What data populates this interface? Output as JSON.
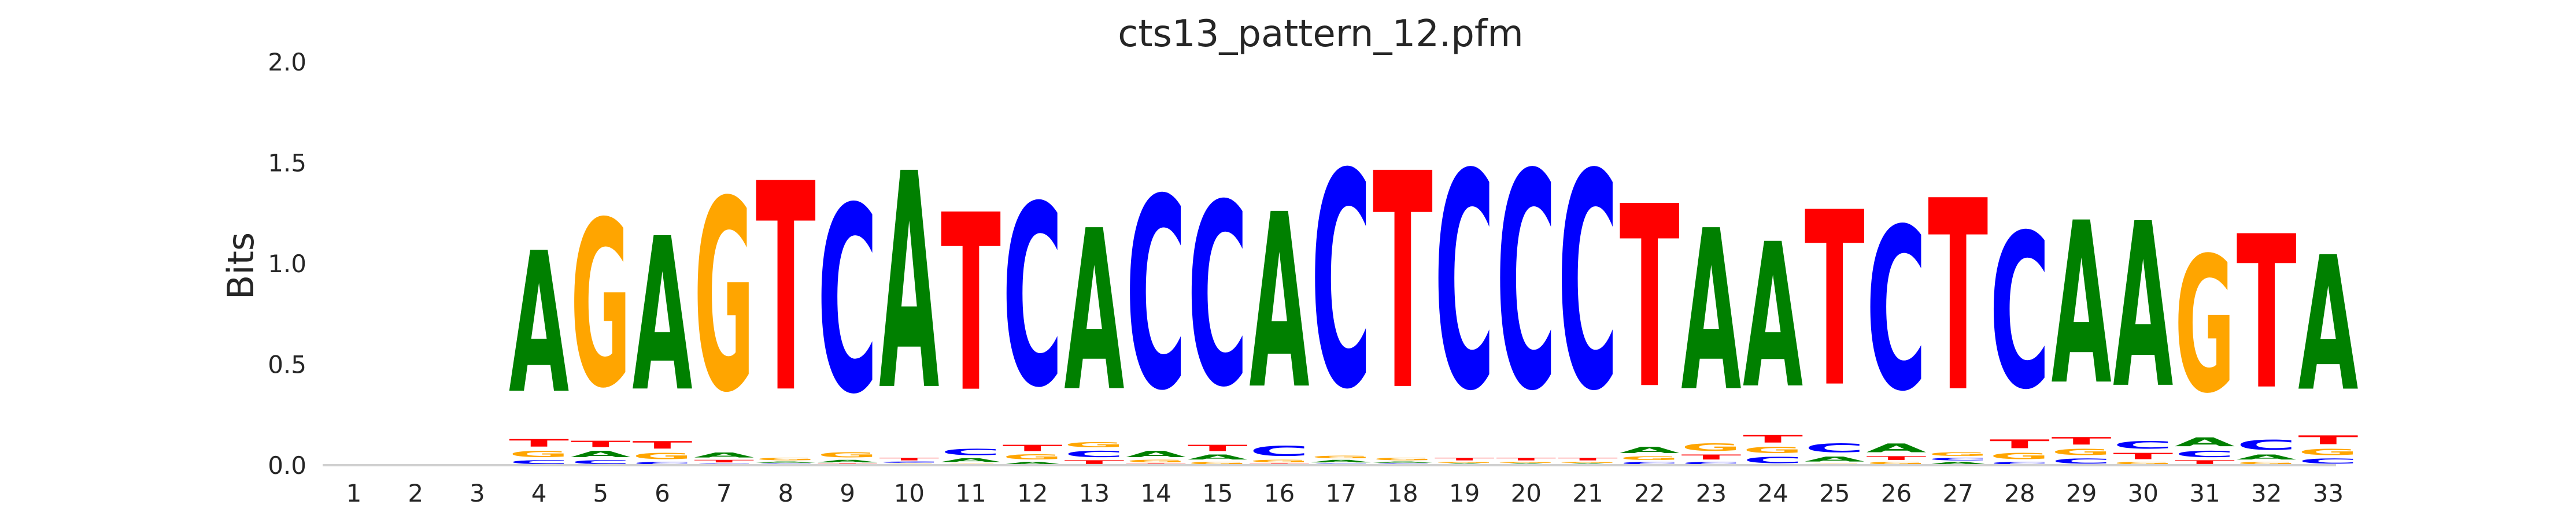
{
  "chart_data": {
    "type": "sequence-logo",
    "title": "cts13_pattern_12.pfm",
    "xlabel": "",
    "ylabel": "Bits",
    "ylim": [
      0,
      2
    ],
    "yticks": [
      "0.0",
      "0.5",
      "1.0",
      "1.5",
      "2.0"
    ],
    "ytick_values": [
      0,
      0.5,
      1.0,
      1.5,
      2.0
    ],
    "grid": false,
    "colors": {
      "A": "#008000",
      "C": "#0000ff",
      "G": "#ffa500",
      "T": "#ff0000"
    },
    "positions": [
      {
        "label": "1",
        "stack": []
      },
      {
        "label": "2",
        "stack": []
      },
      {
        "label": "3",
        "stack": []
      },
      {
        "label": "4",
        "stack": [
          [
            "C",
            0.03
          ],
          [
            "G",
            0.05
          ],
          [
            "T",
            0.06
          ],
          [
            "A",
            1.12
          ]
        ]
      },
      {
        "label": "5",
        "stack": [
          [
            "C",
            0.03
          ],
          [
            "A",
            0.05
          ],
          [
            "T",
            0.05
          ],
          [
            "G",
            1.32
          ]
        ]
      },
      {
        "label": "6",
        "stack": [
          [
            "C",
            0.02
          ],
          [
            "G",
            0.05
          ],
          [
            "T",
            0.06
          ],
          [
            "A",
            1.22
          ]
        ]
      },
      {
        "label": "7",
        "stack": [
          [
            "C",
            0.01
          ],
          [
            "T",
            0.02
          ],
          [
            "A",
            0.04
          ],
          [
            "G",
            1.52
          ]
        ]
      },
      {
        "label": "8",
        "stack": [
          [
            "C",
            0.01
          ],
          [
            "A",
            0.01
          ],
          [
            "G",
            0.02
          ],
          [
            "T",
            1.66
          ]
        ]
      },
      {
        "label": "9",
        "stack": [
          [
            "T",
            0.01
          ],
          [
            "A",
            0.02
          ],
          [
            "G",
            0.04
          ],
          [
            "C",
            1.48
          ]
        ]
      },
      {
        "label": "10",
        "stack": [
          [
            "G",
            0.01
          ],
          [
            "C",
            0.01
          ],
          [
            "T",
            0.02
          ],
          [
            "A",
            1.72
          ]
        ]
      },
      {
        "label": "11",
        "stack": [
          [
            "G",
            0.01
          ],
          [
            "A",
            0.03
          ],
          [
            "C",
            0.05
          ],
          [
            "T",
            1.41
          ]
        ]
      },
      {
        "label": "12",
        "stack": [
          [
            "A",
            0.02
          ],
          [
            "G",
            0.04
          ],
          [
            "T",
            0.05
          ],
          [
            "C",
            1.44
          ]
        ]
      },
      {
        "label": "13",
        "stack": [
          [
            "T",
            0.03
          ],
          [
            "C",
            0.05
          ],
          [
            "G",
            0.04
          ],
          [
            "A",
            1.28
          ]
        ]
      },
      {
        "label": "14",
        "stack": [
          [
            "T",
            0.01
          ],
          [
            "G",
            0.02
          ],
          [
            "A",
            0.05
          ],
          [
            "C",
            1.52
          ]
        ]
      },
      {
        "label": "15",
        "stack": [
          [
            "G",
            0.02
          ],
          [
            "A",
            0.04
          ],
          [
            "T",
            0.05
          ],
          [
            "C",
            1.45
          ]
        ]
      },
      {
        "label": "16",
        "stack": [
          [
            "T",
            0.01
          ],
          [
            "G",
            0.02
          ],
          [
            "C",
            0.08
          ],
          [
            "A",
            1.39
          ]
        ]
      },
      {
        "label": "17",
        "stack": [
          [
            "C",
            0.01
          ],
          [
            "A",
            0.02
          ],
          [
            "G",
            0.02
          ],
          [
            "C",
            1.71
          ]
        ]
      },
      {
        "label": "18",
        "stack": [
          [
            "C",
            0.01
          ],
          [
            "A",
            0.01
          ],
          [
            "G",
            0.02
          ],
          [
            "T",
            1.72
          ]
        ]
      },
      {
        "label": "19",
        "stack": [
          [
            "A",
            0.01
          ],
          [
            "G",
            0.01
          ],
          [
            "T",
            0.02
          ],
          [
            "C",
            1.72
          ]
        ]
      },
      {
        "label": "20",
        "stack": [
          [
            "A",
            0.01
          ],
          [
            "G",
            0.01
          ],
          [
            "T",
            0.02
          ],
          [
            "C",
            1.72
          ]
        ]
      },
      {
        "label": "21",
        "stack": [
          [
            "A",
            0.01
          ],
          [
            "G",
            0.01
          ],
          [
            "T",
            0.02
          ],
          [
            "C",
            1.72
          ]
        ]
      },
      {
        "label": "22",
        "stack": [
          [
            "C",
            0.02
          ],
          [
            "G",
            0.03
          ],
          [
            "A",
            0.05
          ],
          [
            "T",
            1.45
          ]
        ]
      },
      {
        "label": "23",
        "stack": [
          [
            "C",
            0.02
          ],
          [
            "T",
            0.04
          ],
          [
            "G",
            0.06
          ],
          [
            "A",
            1.28
          ]
        ]
      },
      {
        "label": "24",
        "stack": [
          [
            "C",
            0.05
          ],
          [
            "G",
            0.05
          ],
          [
            "T",
            0.06
          ],
          [
            "A",
            1.15
          ]
        ]
      },
      {
        "label": "25",
        "stack": [
          [
            "G",
            0.01
          ],
          [
            "A",
            0.04
          ],
          [
            "C",
            0.07
          ],
          [
            "T",
            1.39
          ]
        ]
      },
      {
        "label": "26",
        "stack": [
          [
            "G",
            0.02
          ],
          [
            "T",
            0.03
          ],
          [
            "A",
            0.07
          ],
          [
            "C",
            1.29
          ]
        ]
      },
      {
        "label": "27",
        "stack": [
          [
            "A",
            0.02
          ],
          [
            "C",
            0.02
          ],
          [
            "G",
            0.03
          ],
          [
            "T",
            1.52
          ]
        ]
      },
      {
        "label": "28",
        "stack": [
          [
            "C",
            0.02
          ],
          [
            "G",
            0.05
          ],
          [
            "T",
            0.07
          ],
          [
            "C",
            1.23
          ]
        ]
      },
      {
        "label": "29",
        "stack": [
          [
            "C",
            0.04
          ],
          [
            "G",
            0.05
          ],
          [
            "T",
            0.06
          ],
          [
            "A",
            1.29
          ]
        ]
      },
      {
        "label": "30",
        "stack": [
          [
            "G",
            0.02
          ],
          [
            "T",
            0.05
          ],
          [
            "C",
            0.06
          ],
          [
            "A",
            1.31
          ]
        ]
      },
      {
        "label": "31",
        "stack": [
          [
            "T",
            0.03
          ],
          [
            "C",
            0.05
          ],
          [
            "A",
            0.07
          ],
          [
            "G",
            1.08
          ]
        ]
      },
      {
        "label": "32",
        "stack": [
          [
            "G",
            0.02
          ],
          [
            "A",
            0.04
          ],
          [
            "C",
            0.08
          ],
          [
            "T",
            1.22
          ]
        ]
      },
      {
        "label": "33",
        "stack": [
          [
            "C",
            0.04
          ],
          [
            "G",
            0.05
          ],
          [
            "T",
            0.07
          ],
          [
            "A",
            1.07
          ]
        ]
      }
    ]
  }
}
